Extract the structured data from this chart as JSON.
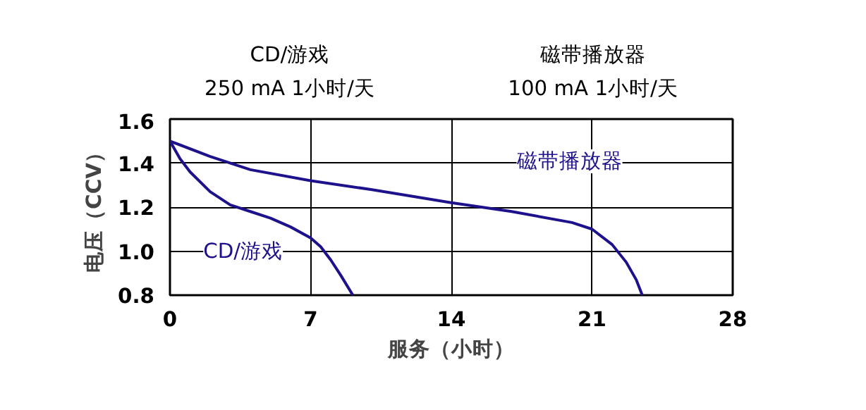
{
  "chart_data": {
    "type": "line",
    "xlabel": "服务（小时）",
    "ylabel": "电压（CCV）",
    "annotations": [
      "CD/游戏",
      "250 mA 1小时/天",
      "磁带播放器",
      "100 mA 1小时/天"
    ],
    "xlim": [
      0,
      28
    ],
    "ylim": [
      0.8,
      1.6
    ],
    "xticks": [
      0,
      7,
      14,
      21,
      28
    ],
    "yticks": [
      {
        "value": 0.8,
        "label": "0.8"
      },
      {
        "value": 1.0,
        "label": "1.0"
      },
      {
        "value": 1.2,
        "label": "1.2"
      },
      {
        "value": 1.4,
        "label": "1.4"
      },
      {
        "value": 1.6,
        "label": "1.6"
      }
    ],
    "grid": true,
    "marker": "none",
    "line_style": "solid",
    "series": [
      {
        "name": "CD/游戏",
        "color": "#1e128c",
        "x": [
          0,
          0.5,
          1,
          2,
          3,
          4,
          5,
          6,
          7,
          7.5,
          8,
          8.5,
          9.1
        ],
        "values": [
          1.5,
          1.42,
          1.36,
          1.27,
          1.21,
          1.18,
          1.15,
          1.11,
          1.06,
          1.02,
          0.96,
          0.89,
          0.8
        ]
      },
      {
        "name": "磁带播放器",
        "color": "#1e128c",
        "x": [
          0,
          2,
          4,
          7,
          10,
          14,
          17,
          20,
          21,
          22,
          22.7,
          23.2,
          23.5
        ],
        "values": [
          1.5,
          1.43,
          1.37,
          1.32,
          1.28,
          1.22,
          1.18,
          1.13,
          1.1,
          1.03,
          0.95,
          0.87,
          0.8
        ]
      }
    ]
  }
}
